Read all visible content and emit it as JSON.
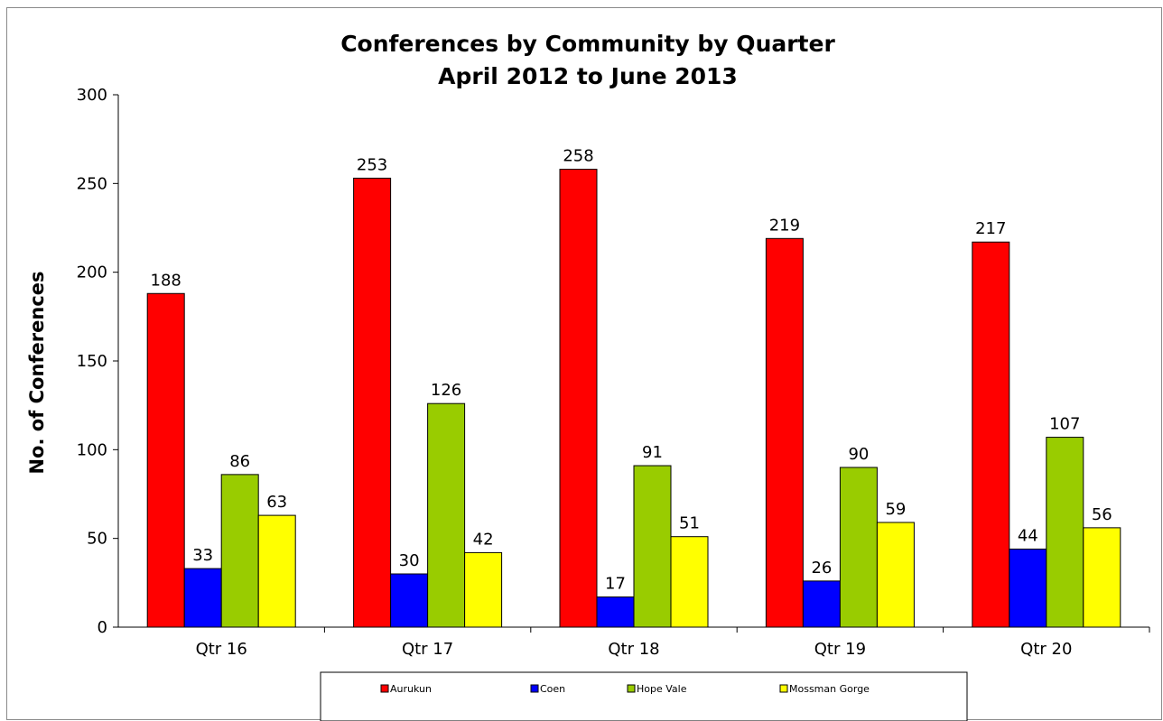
{
  "chart_data": {
    "type": "bar",
    "title": "Conferences by Community by Quarter",
    "subtitle": "April 2012 to June 2013",
    "xlabel": "",
    "ylabel": "No. of Conferences",
    "ylim": [
      0,
      300
    ],
    "yticks": [
      "0",
      "50",
      "100",
      "150",
      "200",
      "250",
      "300"
    ],
    "categories": [
      "Qtr 16",
      "Qtr 17",
      "Qtr 18",
      "Qtr 19",
      "Qtr 20"
    ],
    "series": [
      {
        "name": "Aurukun",
        "color": "#ff0000",
        "values": [
          188,
          253,
          258,
          219,
          217
        ]
      },
      {
        "name": "Coen",
        "color": "#0000ff",
        "values": [
          33,
          30,
          17,
          26,
          44
        ]
      },
      {
        "name": "Hope Vale",
        "color": "#99cc00",
        "values": [
          86,
          126,
          91,
          90,
          107
        ]
      },
      {
        "name": "Mossman Gorge",
        "color": "#ffff00",
        "values": [
          63,
          42,
          51,
          59,
          56
        ]
      }
    ],
    "grid": false,
    "legend_position": "bottom",
    "data_labels": true
  }
}
